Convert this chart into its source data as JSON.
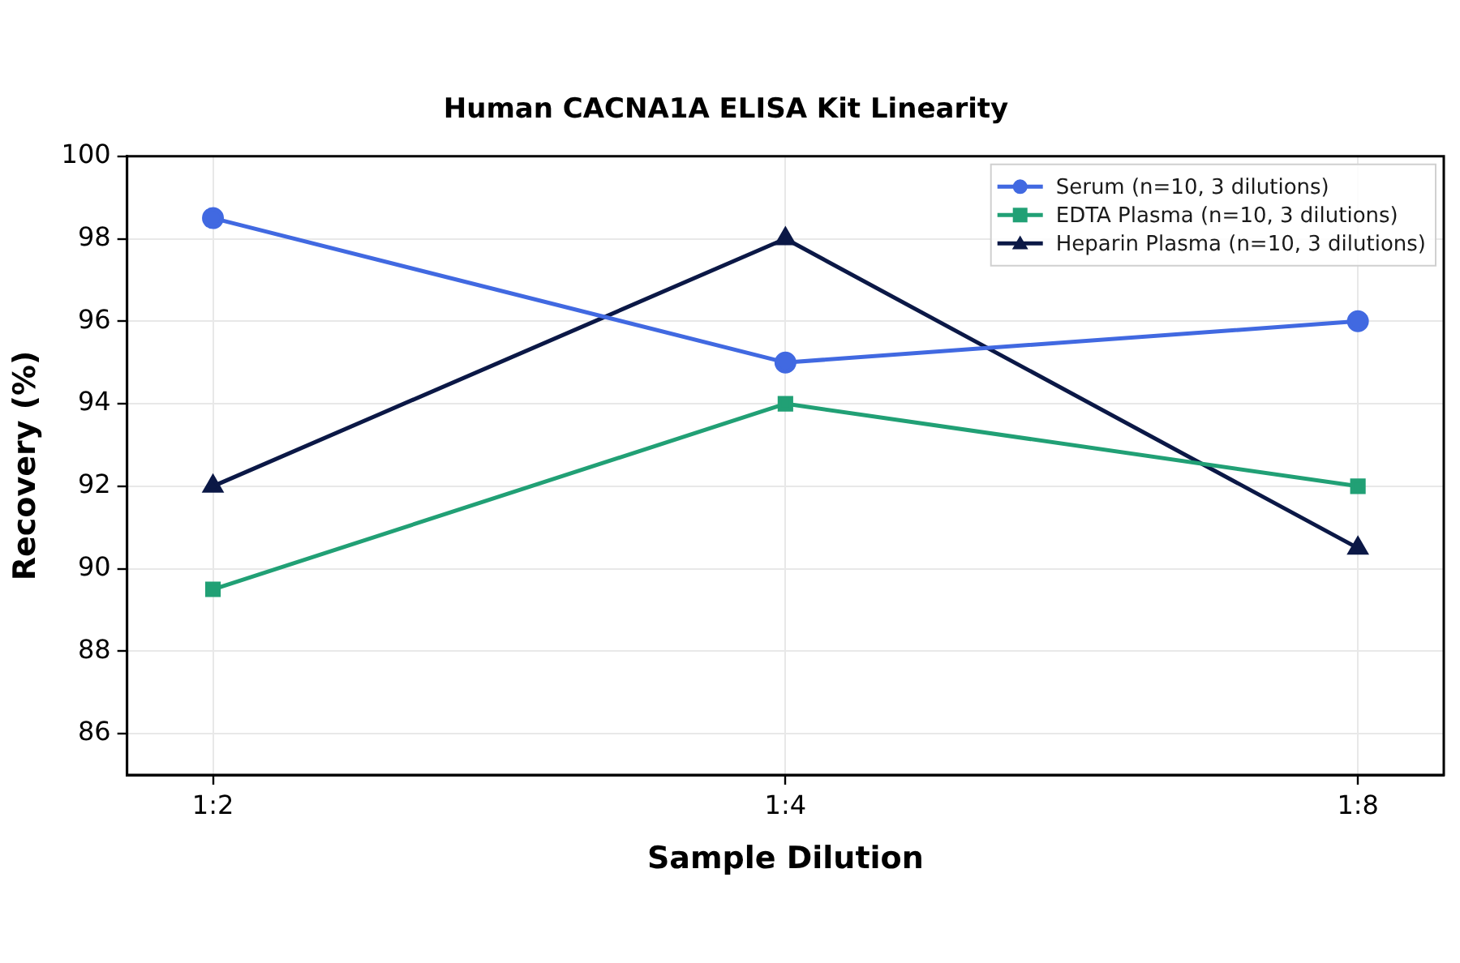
{
  "chart_data": {
    "type": "line",
    "title": "Human CACNA1A ELISA Kit Linearity",
    "xlabel": "Sample Dilution",
    "ylabel": "Recovery (%)",
    "categories": [
      "1:2",
      "1:4",
      "1:8"
    ],
    "series": [
      {
        "name": "Serum (n=10, 3 dilutions)",
        "color": "#4169e1",
        "marker": "circle",
        "values": [
          98.5,
          95,
          96
        ]
      },
      {
        "name": "EDTA Plasma (n=10, 3 dilutions)",
        "color": "#21a075",
        "marker": "square",
        "values": [
          89.5,
          94,
          92
        ]
      },
      {
        "name": "Heparin Plasma (n=10, 3 dilutions)",
        "color": "#0b1846",
        "marker": "triangle",
        "values": [
          92,
          98,
          90.5
        ]
      }
    ],
    "ylim": [
      85,
      100
    ],
    "yticks": [
      86,
      88,
      90,
      92,
      94,
      96,
      98,
      100
    ],
    "grid": true,
    "legend": "top right",
    "line_style": "solid"
  }
}
